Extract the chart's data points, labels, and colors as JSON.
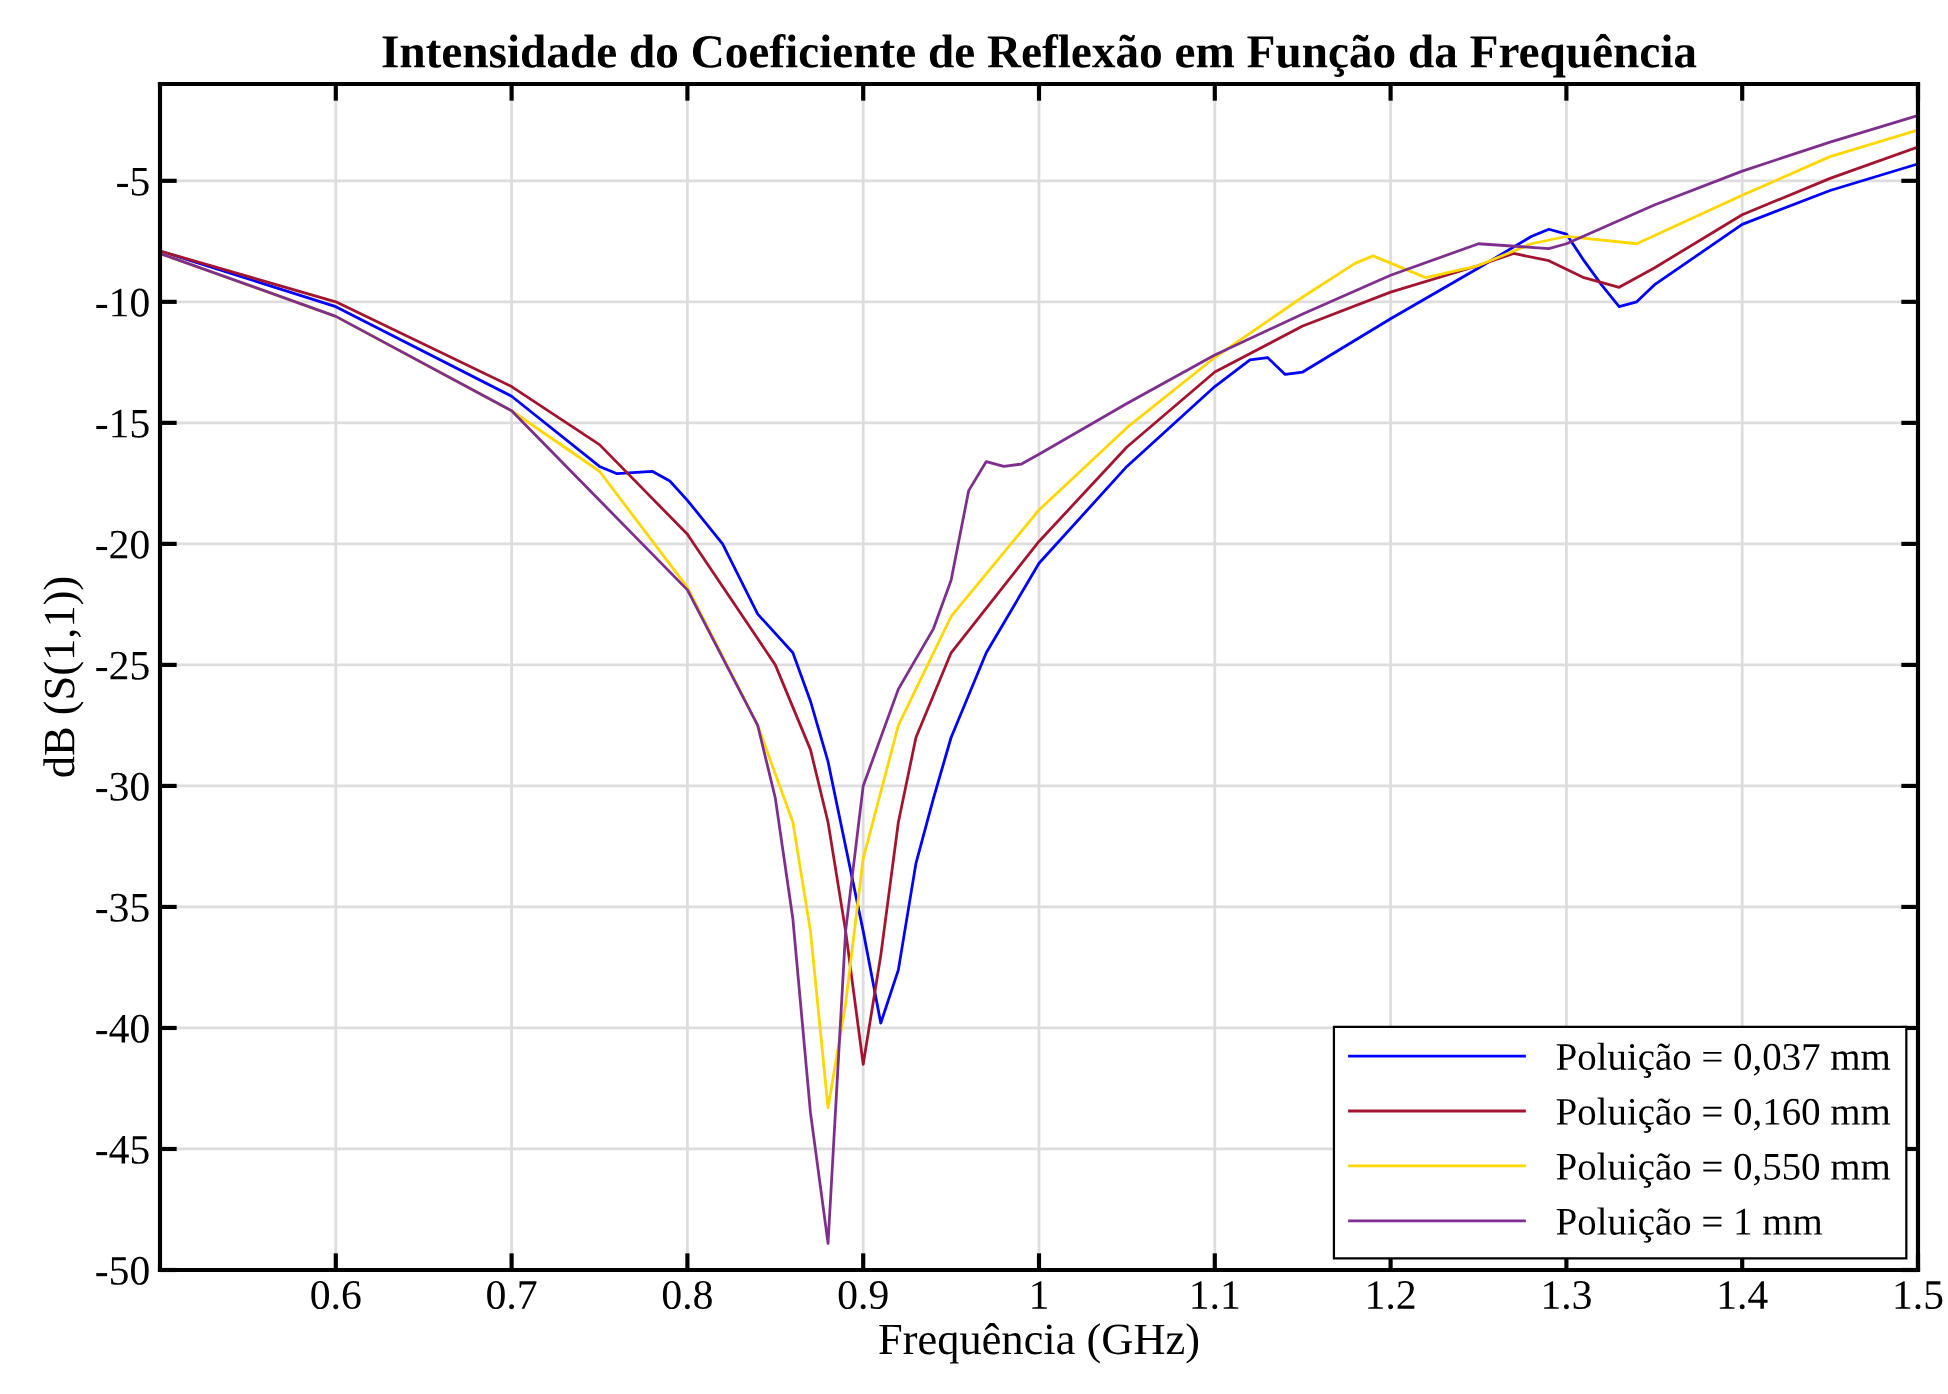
{
  "chart_data": {
    "type": "line",
    "title": "Intensidade do Coeficiente de Reflexão em Função da Frequência",
    "xlabel": "Frequência (GHz)",
    "ylabel": "dB (S(1,1))",
    "xlim": [
      0.5,
      1.5
    ],
    "ylim": [
      -50,
      -1
    ],
    "xticks": [
      0.6,
      0.7,
      0.8,
      0.9,
      1,
      1.1,
      1.2,
      1.3,
      1.4,
      1.5
    ],
    "yticks": [
      -50,
      -45,
      -40,
      -35,
      -30,
      -25,
      -20,
      -15,
      -10,
      -5
    ],
    "grid": true,
    "legend": "bottom right",
    "series": [
      {
        "name": "Poluição = 0,037 mm",
        "color": "#0000ff",
        "x": [
          0.5,
          0.6,
          0.7,
          0.75,
          0.76,
          0.78,
          0.79,
          0.8,
          0.82,
          0.84,
          0.86,
          0.87,
          0.88,
          0.89,
          0.9,
          0.91,
          0.92,
          0.93,
          0.94,
          0.95,
          0.97,
          1.0,
          1.05,
          1.1,
          1.12,
          1.13,
          1.14,
          1.15,
          1.2,
          1.25,
          1.28,
          1.29,
          1.3,
          1.31,
          1.32,
          1.33,
          1.34,
          1.35,
          1.4,
          1.45,
          1.5
        ],
        "values": [
          -7.9,
          -10.2,
          -13.9,
          -16.8,
          -17.1,
          -17.0,
          -17.4,
          -18.2,
          -20.0,
          -22.9,
          -24.5,
          -26.5,
          -29,
          -32.5,
          -36,
          -39.8,
          -37.6,
          -33.2,
          -30.5,
          -28,
          -24.5,
          -20.8,
          -16.8,
          -13.5,
          -12.4,
          -12.3,
          -13.0,
          -12.9,
          -10.7,
          -8.6,
          -7.3,
          -7.0,
          -7.2,
          -8.3,
          -9.3,
          -10.2,
          -10.0,
          -9.3,
          -6.8,
          -5.4,
          -4.3
        ]
      },
      {
        "name": "Poluição = 0,160 mm",
        "color": "#a2142f",
        "x": [
          0.5,
          0.6,
          0.7,
          0.75,
          0.8,
          0.85,
          0.87,
          0.88,
          0.89,
          0.9,
          0.91,
          0.92,
          0.93,
          0.95,
          1.0,
          1.05,
          1.1,
          1.15,
          1.2,
          1.25,
          1.27,
          1.29,
          1.31,
          1.33,
          1.35,
          1.4,
          1.45,
          1.5
        ],
        "values": [
          -7.9,
          -10.0,
          -13.5,
          -15.9,
          -19.6,
          -25.0,
          -28.5,
          -31.5,
          -36,
          -41.5,
          -37,
          -31.5,
          -28,
          -24.5,
          -19.9,
          -16,
          -12.9,
          -11.0,
          -9.6,
          -8.5,
          -8.0,
          -8.3,
          -9.0,
          -9.4,
          -8.6,
          -6.4,
          -4.9,
          -3.6
        ]
      },
      {
        "name": "Poluição = 0,550 mm",
        "color": "#ffd700",
        "x": [
          0.5,
          0.6,
          0.7,
          0.75,
          0.8,
          0.84,
          0.86,
          0.87,
          0.88,
          0.89,
          0.9,
          0.92,
          0.95,
          1.0,
          1.05,
          1.1,
          1.15,
          1.18,
          1.19,
          1.22,
          1.25,
          1.28,
          1.3,
          1.34,
          1.4,
          1.45,
          1.5
        ],
        "values": [
          -8.0,
          -10.6,
          -14.5,
          -17.0,
          -21.8,
          -27.5,
          -31.5,
          -36,
          -43.3,
          -39,
          -33,
          -27.5,
          -23,
          -18.6,
          -15.2,
          -12.3,
          -9.8,
          -8.4,
          -8.1,
          -9.0,
          -8.5,
          -7.6,
          -7.3,
          -7.6,
          -5.6,
          -4.0,
          -2.9
        ]
      },
      {
        "name": "Poluição = 1 mm",
        "color": "#7e2f8e",
        "x": [
          0.5,
          0.6,
          0.7,
          0.8,
          0.84,
          0.85,
          0.86,
          0.87,
          0.88,
          0.89,
          0.9,
          0.92,
          0.94,
          0.95,
          0.96,
          0.97,
          0.98,
          0.99,
          1.0,
          1.05,
          1.1,
          1.15,
          1.2,
          1.25,
          1.29,
          1.3,
          1.35,
          1.4,
          1.45,
          1.5
        ],
        "values": [
          -8.0,
          -10.6,
          -14.5,
          -21.9,
          -27.5,
          -30.5,
          -35.5,
          -43.5,
          -48.9,
          -36,
          -30,
          -26,
          -23.5,
          -21.5,
          -17.8,
          -16.6,
          -16.8,
          -16.7,
          -16.3,
          -14.2,
          -12.2,
          -10.5,
          -8.9,
          -7.6,
          -7.8,
          -7.6,
          -6.0,
          -4.6,
          -3.4,
          -2.3
        ]
      }
    ]
  }
}
